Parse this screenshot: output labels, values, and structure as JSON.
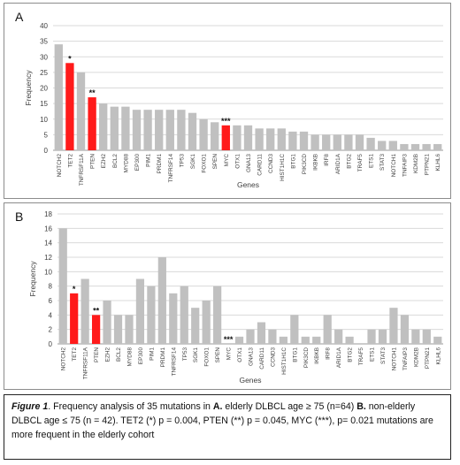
{
  "colors": {
    "bar": "#c0c0c0",
    "highlight": "#ff1a1a",
    "grid": "#dadada",
    "text": "#404040"
  },
  "chart_data": [
    {
      "type": "bar",
      "panel_label": "A",
      "xlabel": "Genes",
      "ylabel": "Frequency",
      "ylim": [
        0,
        40
      ],
      "yticks": [
        0,
        5,
        10,
        15,
        20,
        25,
        30,
        35,
        40
      ],
      "grid": true,
      "categories": [
        "NOTCH2",
        "TET2",
        "TNFRSF11A",
        "PTEN",
        "EZH2",
        "BCL2",
        "MYD88",
        "EP300",
        "PIM1",
        "PRDM1",
        "TNFRSF14",
        "TP53",
        "SGK1",
        "FOXO1",
        "SPEN",
        "MYC",
        "OTX1",
        "GNA13",
        "CARD11",
        "CCND3",
        "HIST1H1C",
        "BTG1",
        "PIK3CD",
        "IKBKB",
        "IRF8",
        "ARID1A",
        "BTG2",
        "TRAF5",
        "ETS1",
        "STAT3",
        "NOTCH1",
        "TNFAIP3",
        "KDM2B",
        "PTPN21",
        "KLHL6"
      ],
      "values": [
        34,
        28,
        25,
        17,
        15,
        14,
        14,
        13,
        13,
        13,
        13,
        13,
        12,
        10,
        9,
        8,
        8,
        8,
        7,
        7,
        7,
        6,
        6,
        5,
        5,
        5,
        5,
        5,
        4,
        3,
        3,
        2,
        2,
        2,
        2
      ],
      "highlight": [
        {
          "category": "TET2",
          "marker": "*"
        },
        {
          "category": "PTEN",
          "marker": "**"
        },
        {
          "category": "MYC",
          "marker": "***"
        }
      ]
    },
    {
      "type": "bar",
      "panel_label": "B",
      "xlabel": "Genes",
      "ylabel": "Frequency",
      "ylim": [
        0,
        18
      ],
      "yticks": [
        0,
        2,
        4,
        6,
        8,
        10,
        12,
        14,
        16,
        18
      ],
      "grid": true,
      "categories": [
        "NOTCH2",
        "TET2",
        "TNFRSF11A",
        "PTEN",
        "EZH2",
        "BCL2",
        "MYD88",
        "EP300",
        "PIM1",
        "PRDM1",
        "TNFRSF14",
        "TP53",
        "SGK1",
        "FOXO1",
        "SPEN",
        "MYC",
        "OTX1",
        "GNA13",
        "CARD11",
        "CCND3",
        "HIST1H1C",
        "BTG1",
        "PIK3CD",
        "IKBKB",
        "IRF8",
        "ARID1A",
        "BTG2",
        "TRAF5",
        "ETS1",
        "STAT3",
        "NOTCH1",
        "TNFAIP3",
        "KDM2B",
        "PTPN21",
        "KLHL6"
      ],
      "values": [
        16,
        7,
        9,
        4,
        6,
        4,
        4,
        9,
        8,
        12,
        7,
        8,
        5,
        6,
        8,
        0,
        1,
        2,
        3,
        2,
        1,
        4,
        1,
        1,
        4,
        2,
        1,
        0,
        2,
        2,
        5,
        4,
        2,
        2,
        1
      ],
      "highlight": [
        {
          "category": "TET2",
          "marker": "*"
        },
        {
          "category": "PTEN",
          "marker": "**"
        },
        {
          "category": "MYC",
          "marker": "***"
        }
      ]
    }
  ],
  "caption": {
    "fig_label": "Figure 1",
    "text1": ". Frequency analysis of 35 mutations in ",
    "a_label": "A.",
    "text2": " elderly DLBCL age ≥ 75 (n=64) ",
    "b_label": "B.",
    "text3": " non-elderly DLBCL age ≤ 75 (n = 42). TET2 (*) p = 0.004, PTEN (**) p = 0.045, MYC (***), p= 0.021 mutations are more frequent in the elderly cohort"
  }
}
